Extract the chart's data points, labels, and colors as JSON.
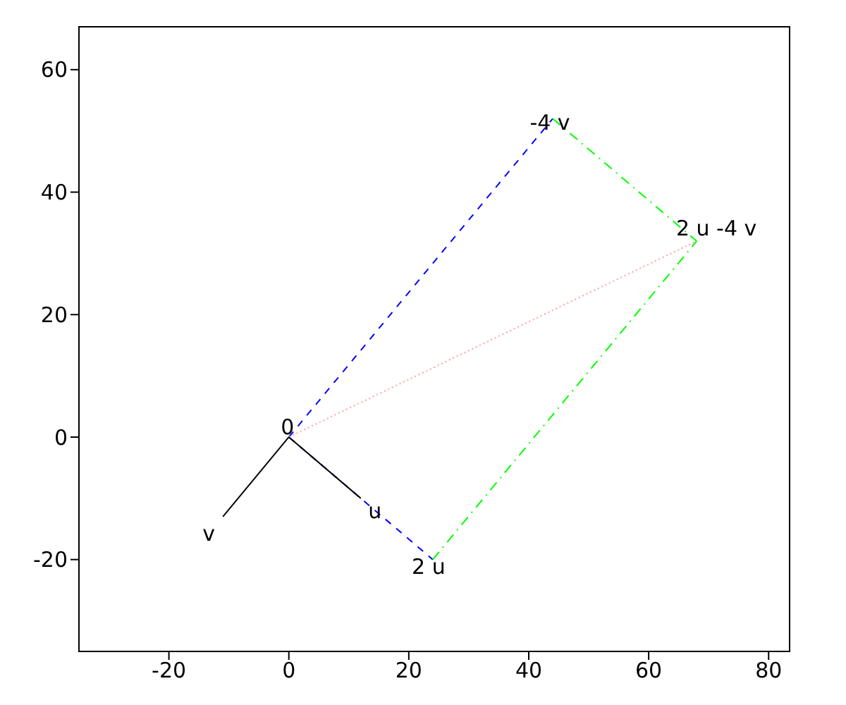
{
  "chart_data": {
    "type": "line",
    "xlim": [
      -35,
      83.5
    ],
    "ylim": [
      -35,
      67
    ],
    "xticks": [
      -20,
      0,
      20,
      40,
      60,
      80
    ],
    "yticks": [
      -20,
      0,
      20,
      40,
      60
    ],
    "series": [
      {
        "color": "#0000ff",
        "line_style": "dashed",
        "x": [
          0,
          24
        ],
        "values": [
          0,
          -20
        ]
      },
      {
        "color": "#0000ff",
        "line_style": "dashed",
        "x": [
          0,
          44
        ],
        "values": [
          0,
          52
        ]
      },
      {
        "color": "#00ff00",
        "line_style": "dashdot",
        "x": [
          24,
          68
        ],
        "values": [
          -20,
          32
        ]
      },
      {
        "color": "#00ff00",
        "line_style": "dashdot",
        "x": [
          44,
          68
        ],
        "values": [
          52,
          32
        ]
      },
      {
        "color": "#ffa0a0",
        "line_style": "dotted",
        "x": [
          0,
          68
        ],
        "values": [
          0,
          32
        ]
      },
      {
        "color": "#000000",
        "line_style": "solid",
        "x": [
          0,
          12
        ],
        "values": [
          0,
          -10
        ]
      },
      {
        "color": "#000000",
        "line_style": "solid",
        "x": [
          0,
          -11
        ],
        "values": [
          0,
          -13
        ]
      }
    ],
    "annotations": [
      {
        "text": "0",
        "x": 0,
        "y": 0
      },
      {
        "text": "u",
        "x": 12,
        "y": -10
      },
      {
        "text": "v",
        "x": -11,
        "y": -13
      },
      {
        "text": "2 u",
        "x": 24,
        "y": -20
      },
      {
        "text": "-4 v",
        "x": 44,
        "y": 52
      },
      {
        "text": "2 u -4 v",
        "x": 68,
        "y": 32
      }
    ]
  }
}
